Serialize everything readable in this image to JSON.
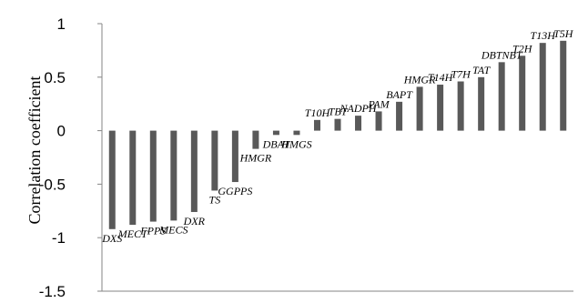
{
  "chart_data": {
    "type": "bar",
    "title": "",
    "xlabel": "",
    "ylabel": "Correlation coefficient",
    "ylim": [
      -1.5,
      1
    ],
    "yticks": [
      -1.5,
      -1,
      -0.5,
      0,
      0.5,
      1
    ],
    "ytick_labels": [
      "-1.5",
      "-1",
      "-0.5",
      "0",
      "0.5",
      "1"
    ],
    "grid": false,
    "bar_color": "#595959",
    "categories": [
      "DXS",
      "MECT",
      "FPPS",
      "MECS",
      "DXR",
      "TS",
      "GGPPS",
      "HMGR",
      "DBAT",
      "HMGS",
      "T10H",
      "TBT",
      "NADPH",
      "PAM",
      "BAPT",
      "HMGR",
      "T14H",
      "T7H",
      "TAT",
      "DBTNBT",
      "T2H",
      "T13H",
      "T5H"
    ],
    "values": [
      -0.92,
      -0.88,
      -0.85,
      -0.84,
      -0.76,
      -0.56,
      -0.48,
      -0.17,
      -0.04,
      -0.04,
      0.1,
      0.11,
      0.14,
      0.18,
      0.27,
      0.41,
      0.43,
      0.46,
      0.5,
      0.64,
      0.7,
      0.82,
      0.84
    ]
  }
}
